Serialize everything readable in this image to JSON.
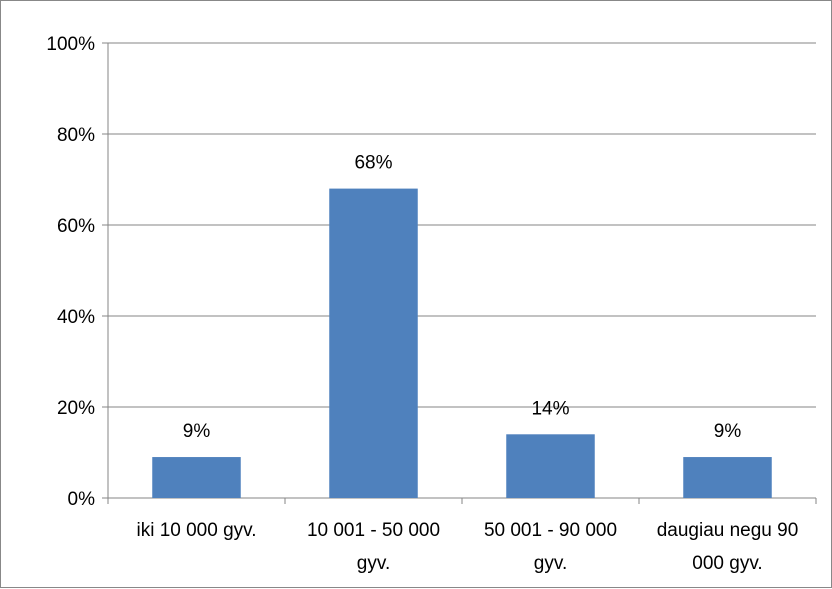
{
  "chart_data": {
    "type": "bar",
    "categories": [
      [
        "iki 10 000 gyv."
      ],
      [
        "10 001 - 50 000",
        "gyv."
      ],
      [
        "50 001 - 90 000",
        "gyv."
      ],
      [
        "daugiau negu 90",
        "000 gyv."
      ]
    ],
    "values": [
      9,
      68,
      14,
      9
    ],
    "data_labels": [
      "9%",
      "68%",
      "14%",
      "9%"
    ],
    "yticks": [
      "0%",
      "20%",
      "40%",
      "60%",
      "80%",
      "100%"
    ],
    "ylim": [
      0,
      100
    ],
    "grid": true,
    "legend": "none",
    "colors": {
      "bar": "#4F81BD",
      "grid": "#868686",
      "axis": "#868686"
    }
  }
}
